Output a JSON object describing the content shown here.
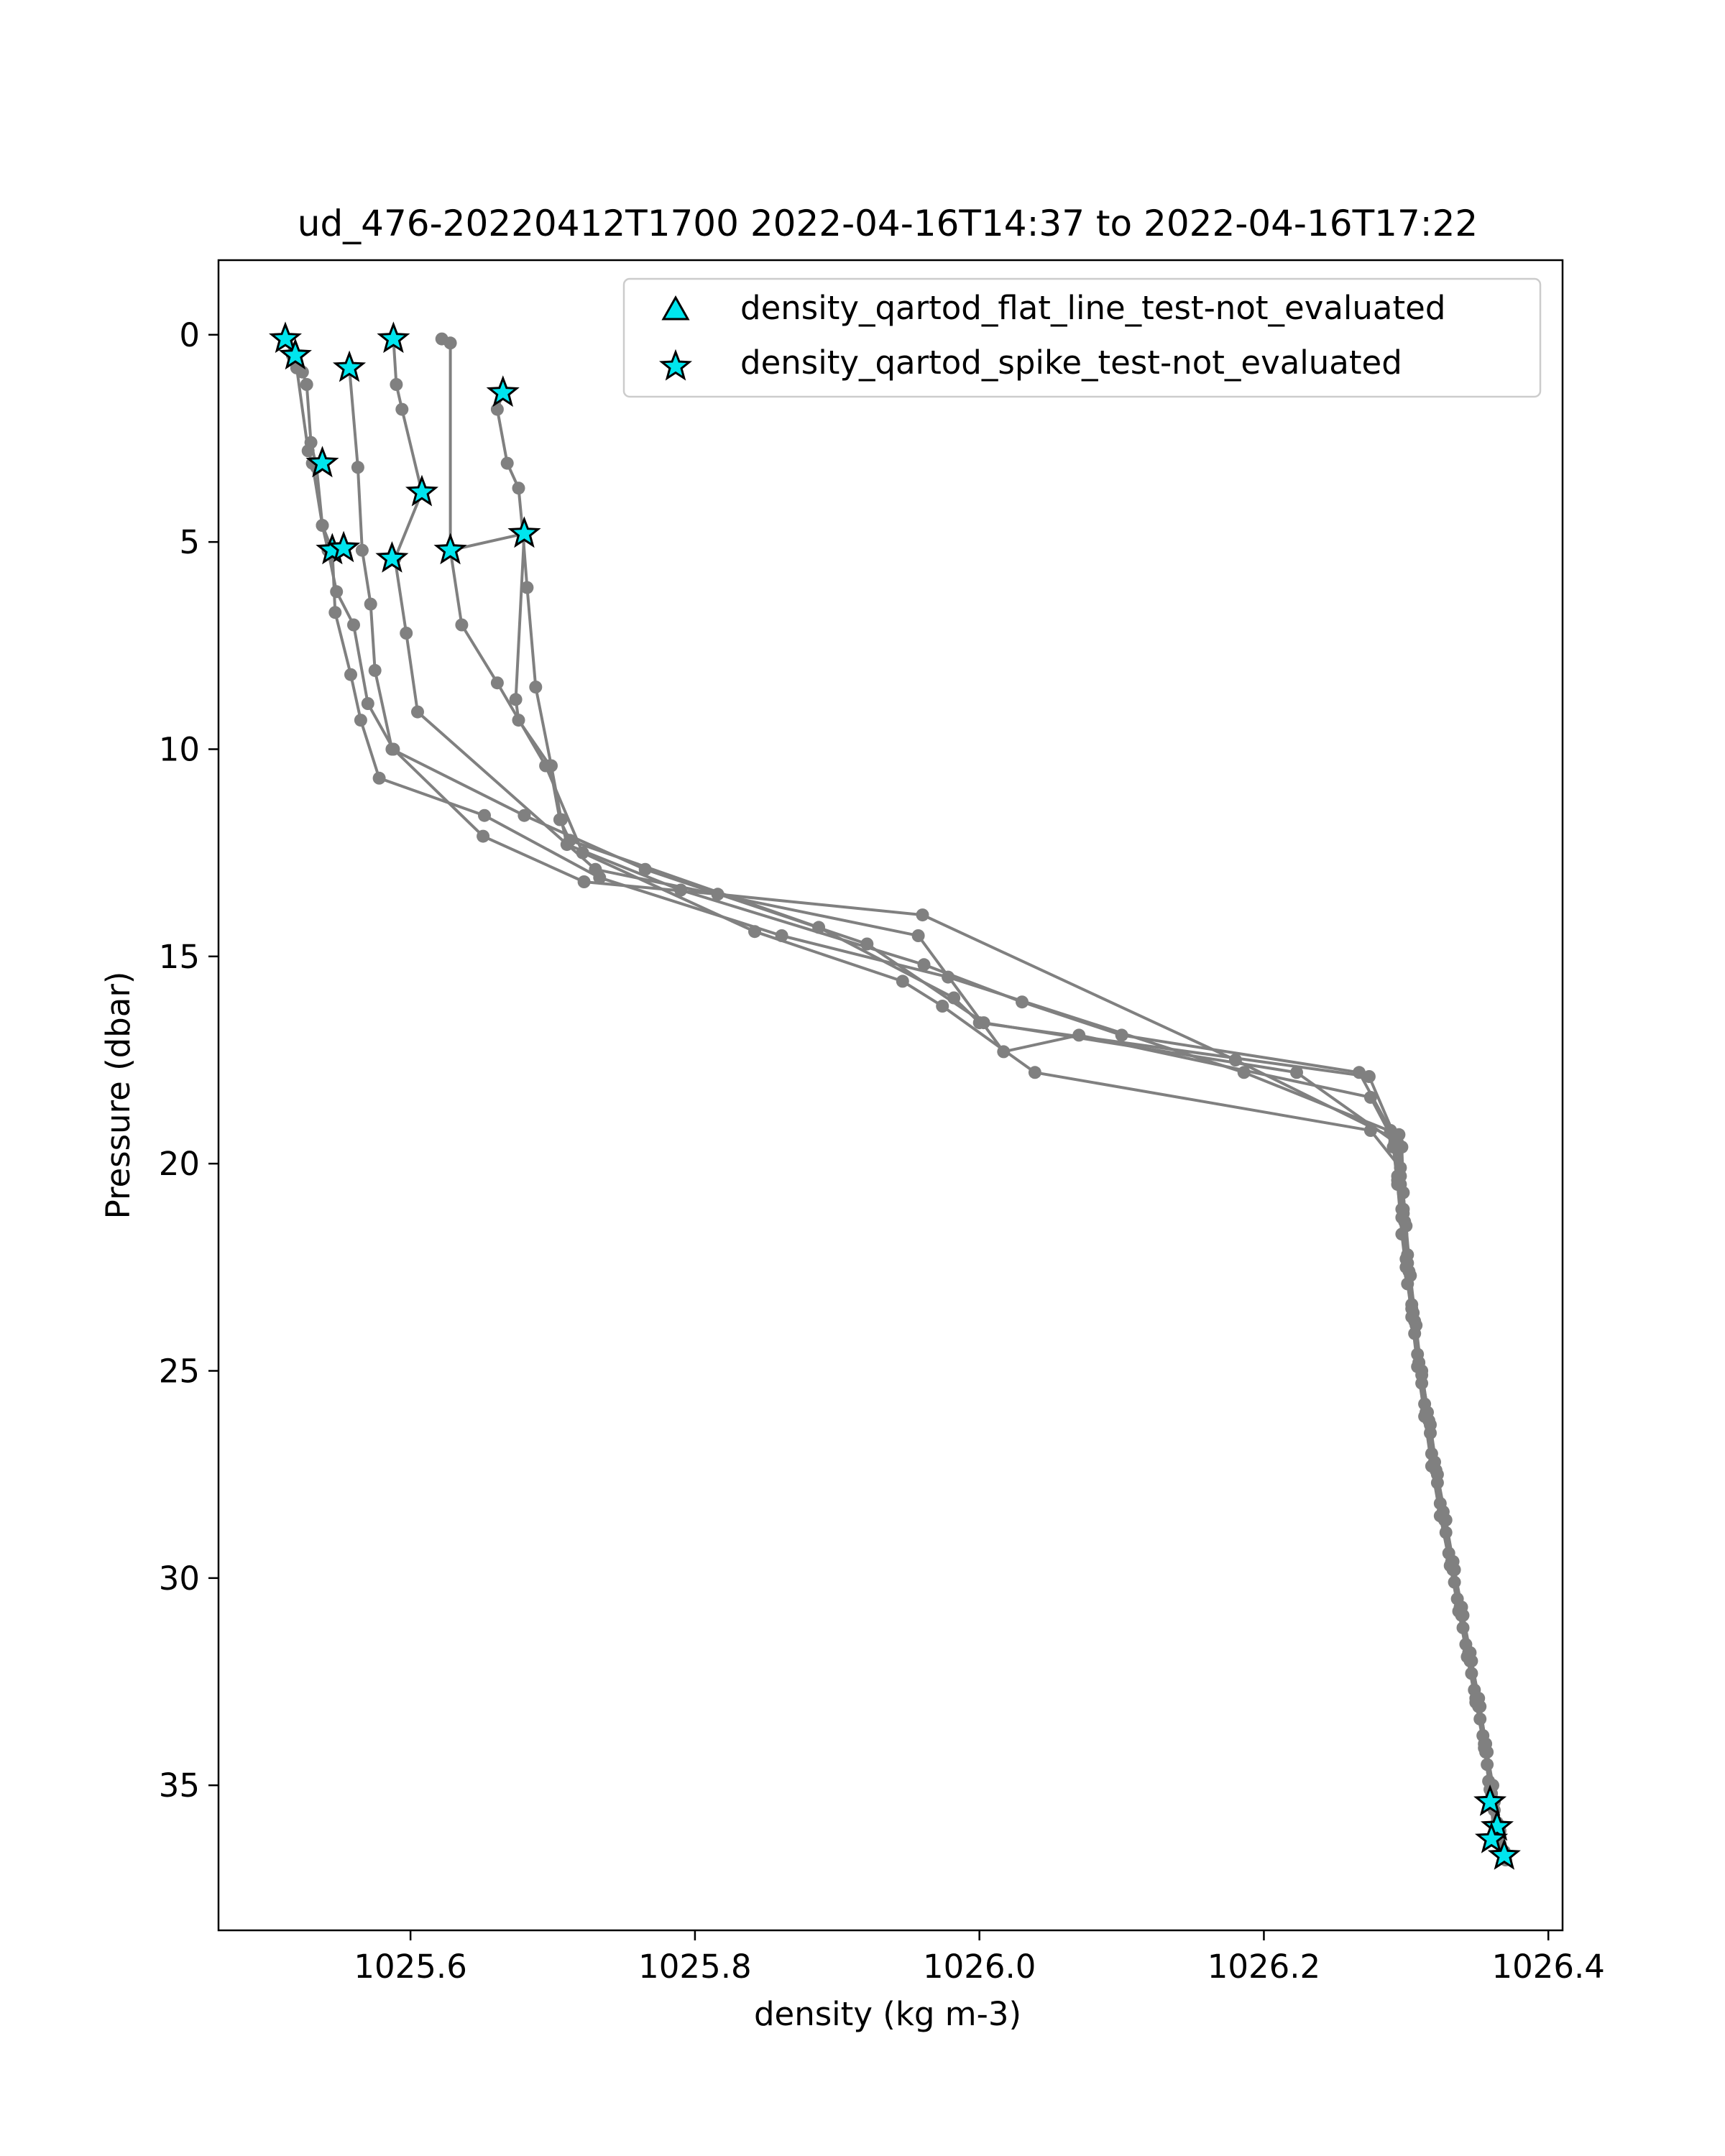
{
  "chart_data": {
    "type": "line",
    "title": "ud_476-20220412T1700 2022-04-16T14:37 to 2022-04-16T17:22",
    "xlabel": "density (kg m-3)",
    "ylabel": "Pressure (dbar)",
    "xlim": [
      1025.465,
      1026.41
    ],
    "ylim": [
      38.5,
      -1.8
    ],
    "y_inverted": true,
    "grid": false,
    "legend_position": "upper-right",
    "x_ticks": [
      1025.6,
      1025.8,
      1026.0,
      1026.2,
      1026.4
    ],
    "x_tick_labels": [
      "1025.6",
      "1025.8",
      "1026.0",
      "1026.2",
      "1026.4"
    ],
    "y_ticks": [
      0,
      5,
      10,
      15,
      20,
      25,
      30,
      35
    ],
    "y_tick_labels": [
      "0",
      "5",
      "10",
      "15",
      "20",
      "25",
      "30",
      "35"
    ],
    "line_color": "#808080",
    "marker_color": "#00e5ee",
    "legend": [
      {
        "label": "density_qartod_flat_line_test-not_evaluated",
        "marker": "triangle"
      },
      {
        "label": "density_qartod_spike_test-not_evaluated",
        "marker": "star"
      }
    ],
    "series": [
      {
        "x": [
          1025.512,
          1025.517,
          1025.52,
          1025.528,
          1025.531,
          1025.538,
          1025.545,
          1025.547,
          1025.558,
          1025.565,
          1025.578,
          1025.652,
          1025.733,
          1025.861,
          1025.978,
          1026.186,
          1026.295,
          1026.296,
          1026.298,
          1026.301,
          1026.305,
          1026.309,
          1026.315,
          1026.32,
          1026.326,
          1026.332,
          1026.338,
          1026.344,
          1026.349,
          1026.355,
          1026.359,
          1026.362
        ],
        "y": [
          0.1,
          0.5,
          0.8,
          2.8,
          3.1,
          4.6,
          5.2,
          6.7,
          8.2,
          9.3,
          10.7,
          11.6,
          13.1,
          14.5,
          15.5,
          17.8,
          19.3,
          20.5,
          21.2,
          22.4,
          23.6,
          24.8,
          26.0,
          27.2,
          28.4,
          29.6,
          30.7,
          31.8,
          32.9,
          34.0,
          35.1,
          35.4
        ]
      },
      {
        "x": [
          1025.519,
          1025.524,
          1025.527,
          1025.53,
          1025.534,
          1025.538,
          1025.542,
          1025.548,
          1025.56,
          1025.57,
          1025.588,
          1025.651,
          1025.722,
          1025.816,
          1025.96,
          1026.18,
          1026.292,
          1026.294,
          1026.297,
          1026.3,
          1026.304,
          1026.309,
          1026.314,
          1026.32,
          1026.326,
          1026.333,
          1026.339,
          1026.345,
          1026.351,
          1026.356,
          1026.36,
          1026.364
        ],
        "y": [
          0.5,
          0.9,
          1.2,
          2.6,
          3.2,
          4.6,
          5.2,
          6.2,
          7.0,
          8.9,
          10.0,
          12.1,
          13.2,
          13.5,
          14.0,
          17.5,
          19.4,
          20.3,
          21.1,
          22.3,
          23.5,
          24.8,
          26.0,
          27.2,
          28.4,
          29.6,
          30.7,
          31.8,
          32.9,
          34.0,
          35.5,
          35.9
        ]
      },
      {
        "x": [
          1025.557,
          1025.563,
          1025.566,
          1025.572,
          1025.575,
          1025.587,
          1025.68,
          1025.765,
          1025.921,
          1026.003,
          1026.223,
          1026.297,
          1026.298,
          1026.3,
          1026.303,
          1026.307,
          1026.311,
          1026.317,
          1026.322,
          1026.328,
          1026.334,
          1026.34,
          1026.346,
          1026.352,
          1026.357,
          1026.361,
          1026.366
        ],
        "y": [
          0.8,
          3.2,
          5.2,
          6.5,
          8.1,
          10.0,
          11.6,
          12.9,
          14.7,
          16.6,
          17.8,
          19.6,
          20.7,
          21.5,
          22.7,
          23.9,
          25.1,
          26.3,
          27.5,
          28.6,
          29.8,
          30.9,
          32.0,
          33.1,
          34.2,
          35.0,
          36.1
        ]
      },
      {
        "x": [
          1025.588,
          1025.59,
          1025.594,
          1025.608,
          1025.589,
          1025.597,
          1025.605,
          1025.73,
          1025.957,
          1026.017,
          1026.07,
          1026.275,
          1026.292,
          1026.294,
          1026.297,
          1026.3,
          1026.304,
          1026.308,
          1026.313,
          1026.318,
          1026.324,
          1026.331,
          1026.337,
          1026.343,
          1026.349,
          1026.355,
          1026.359,
          1026.362
        ],
        "y": [
          0.1,
          1.2,
          1.8,
          3.8,
          5.4,
          7.2,
          9.1,
          12.9,
          14.5,
          17.3,
          16.9,
          18.4,
          19.5,
          20.4,
          21.3,
          22.5,
          23.7,
          24.9,
          26.1,
          27.3,
          28.5,
          29.7,
          30.8,
          31.9,
          33.0,
          34.1,
          35.1,
          36.3
        ]
      },
      {
        "x": [
          1025.622,
          1025.628,
          1025.628,
          1025.636,
          1025.661,
          1025.695,
          1025.721,
          1025.842,
          1025.946,
          1025.974,
          1026.039,
          1026.275,
          1026.296,
          1026.298,
          1026.301,
          1026.304,
          1026.308,
          1026.313,
          1026.318,
          1026.324,
          1026.33,
          1026.336,
          1026.342,
          1026.348,
          1026.354,
          1026.358,
          1026.364,
          1026.369
        ],
        "y": [
          0.1,
          0.2,
          5.2,
          7.0,
          8.4,
          10.4,
          12.5,
          14.4,
          15.6,
          16.2,
          17.8,
          19.2,
          20.1,
          21.1,
          22.2,
          23.4,
          24.6,
          25.8,
          27.0,
          28.2,
          29.4,
          30.5,
          31.6,
          32.7,
          33.8,
          34.9,
          36.0,
          36.6
        ]
      },
      {
        "x": [
          1025.665,
          1025.661,
          1025.668,
          1025.676,
          1025.679,
          1025.682,
          1025.688,
          1025.699,
          1025.706,
          1025.71,
          1025.79,
          1025.961,
          1026.03,
          1026.1,
          1026.267,
          1026.289,
          1026.291,
          1026.294,
          1026.297,
          1026.301,
          1026.306,
          1026.311,
          1026.317,
          1026.322,
          1026.328,
          1026.334,
          1026.34,
          1026.346,
          1026.352,
          1026.357,
          1026.362,
          1026.368
        ],
        "y": [
          1.4,
          1.8,
          3.1,
          3.7,
          4.8,
          6.1,
          8.5,
          10.4,
          11.7,
          12.3,
          13.4,
          15.2,
          16.1,
          16.9,
          17.8,
          19.2,
          19.6,
          20.5,
          21.7,
          22.9,
          24.1,
          25.3,
          26.5,
          27.7,
          28.9,
          30.1,
          31.2,
          32.3,
          33.4,
          34.5,
          35.6,
          36.6
        ]
      },
      {
        "x": [
          1025.628,
          1025.68,
          1025.674,
          1025.676,
          1025.698,
          1025.705,
          1025.712,
          1025.887,
          1025.982,
          1026.0,
          1026.274,
          1026.294,
          1026.296,
          1026.299,
          1026.302,
          1026.306,
          1026.311,
          1026.316,
          1026.321,
          1026.327,
          1026.333,
          1026.339,
          1026.345,
          1026.351,
          1026.356,
          1026.36,
          1026.366,
          1026.37
        ],
        "y": [
          5.2,
          4.8,
          8.8,
          9.3,
          10.4,
          11.7,
          12.2,
          14.3,
          16.0,
          16.6,
          17.9,
          19.5,
          20.3,
          21.4,
          22.6,
          23.8,
          25.0,
          26.2,
          27.4,
          28.6,
          29.8,
          30.9,
          32.0,
          33.1,
          34.2,
          35.2,
          36.4,
          36.8
        ]
      }
    ],
    "flags": {
      "flat_line_triangles": [],
      "spike_stars": [
        {
          "x": 1025.512,
          "y": 0.1
        },
        {
          "x": 1025.519,
          "y": 0.5
        },
        {
          "x": 1025.557,
          "y": 0.8
        },
        {
          "x": 1025.588,
          "y": 0.1
        },
        {
          "x": 1025.665,
          "y": 1.4
        },
        {
          "x": 1025.538,
          "y": 3.1
        },
        {
          "x": 1025.608,
          "y": 3.8
        },
        {
          "x": 1025.68,
          "y": 4.8
        },
        {
          "x": 1025.545,
          "y": 5.2
        },
        {
          "x": 1025.553,
          "y": 5.15
        },
        {
          "x": 1025.587,
          "y": 5.4
        },
        {
          "x": 1025.628,
          "y": 5.2
        },
        {
          "x": 1026.359,
          "y": 35.4
        },
        {
          "x": 1026.364,
          "y": 36.0
        },
        {
          "x": 1026.36,
          "y": 36.3
        },
        {
          "x": 1026.369,
          "y": 36.7
        }
      ]
    }
  }
}
